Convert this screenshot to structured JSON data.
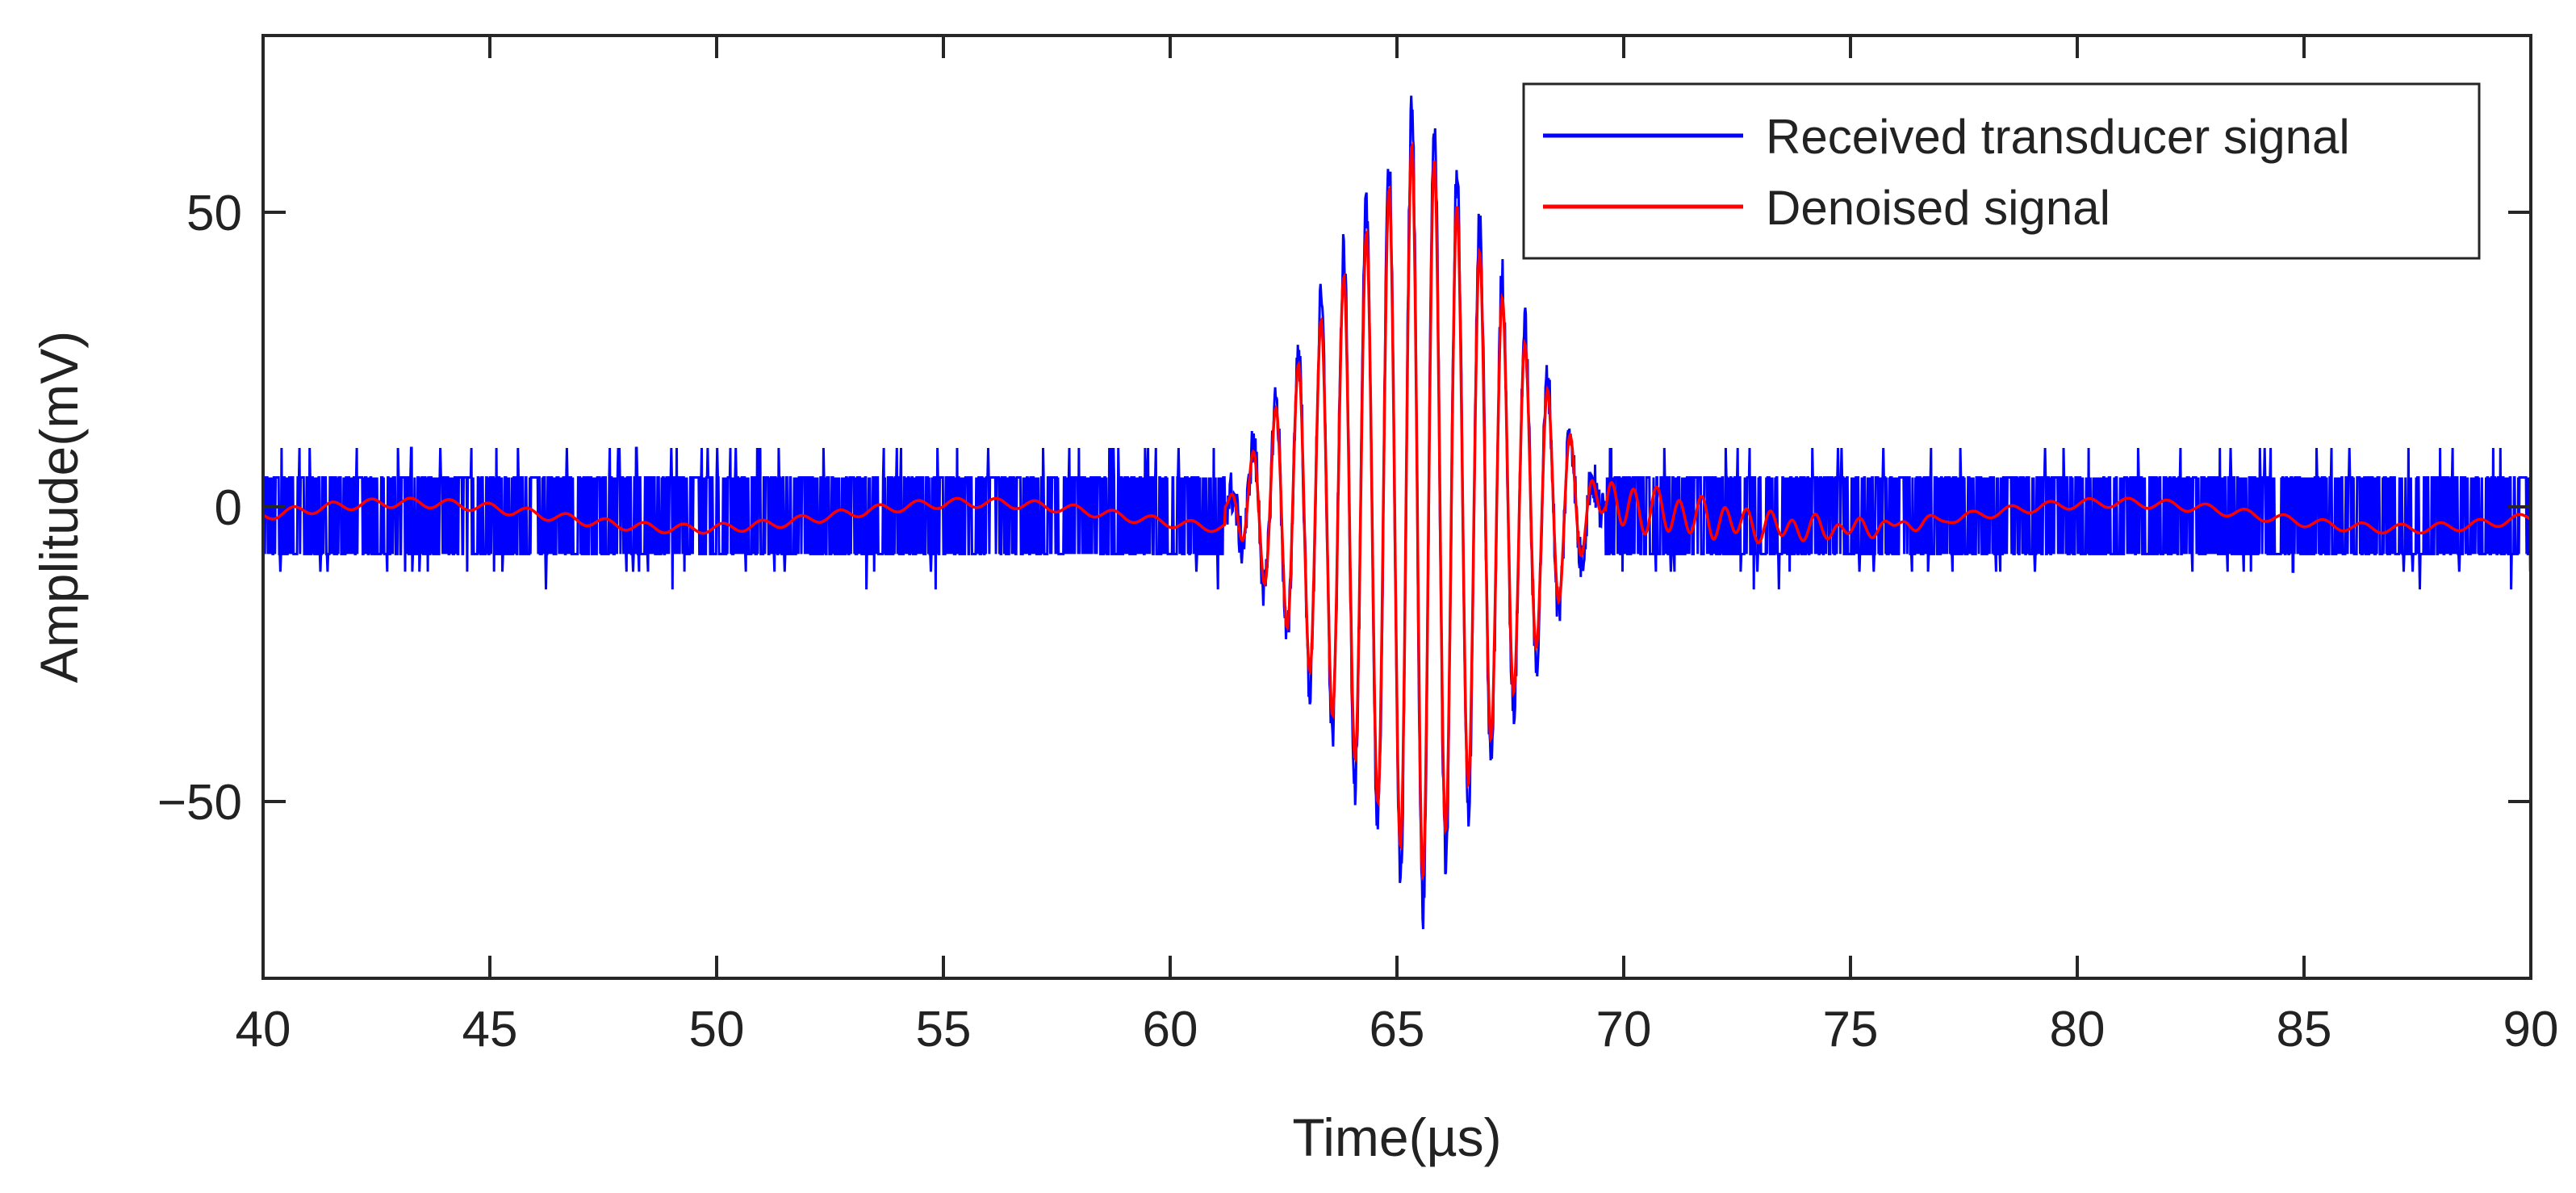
{
  "chart_data": {
    "type": "line",
    "xlabel": "Time(µs)",
    "ylabel": "Amplitude(mV)",
    "xlim": [
      40,
      90
    ],
    "ylim": [
      -80,
      80
    ],
    "x_ticks": [
      40,
      45,
      50,
      55,
      60,
      65,
      70,
      75,
      80,
      85,
      90
    ],
    "y_ticks": [
      -50,
      0,
      50
    ],
    "x_tick_labels": [
      "40",
      "45",
      "50",
      "55",
      "60",
      "65",
      "70",
      "75",
      "80",
      "85",
      "90"
    ],
    "y_tick_labels": [
      "−50",
      "0",
      "50"
    ],
    "grid": false,
    "legend_position": "top-right",
    "series": [
      {
        "name": "Received transducer signal",
        "color": "#0000ff",
        "description_values": {
          "noise_band_mV": [
            -8,
            5
          ],
          "noise_spike_max_mV": 10,
          "noise_spike_min_mV": -14,
          "burst_start_us": 61.2,
          "burst_end_us": 69.6,
          "burst_peak_us": 65.5,
          "burst_peak_amplitude_mV": 70,
          "carrier_period_us": 0.5
        }
      },
      {
        "name": "Denoised signal",
        "color": "#ff0000",
        "description_values": {
          "baseline_mV": -1.5,
          "burst_start_us": 61.2,
          "burst_end_us": 69.6,
          "burst_peak_us": 65.5,
          "burst_peak_amplitude_mV": 64,
          "ringing_end_us": 77.5,
          "ringing_amplitude_mV": 4,
          "carrier_period_us": 0.5
        }
      }
    ]
  }
}
